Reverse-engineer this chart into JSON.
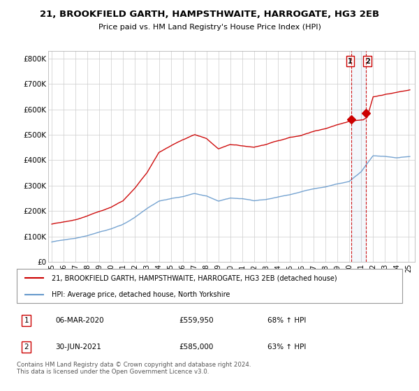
{
  "title_line1": "21, BROOKFIELD GARTH, HAMPSTHWAITE, HARROGATE, HG3 2EB",
  "title_line2": "Price paid vs. HM Land Registry's House Price Index (HPI)",
  "legend_label1": "21, BROOKFIELD GARTH, HAMPSTHWAITE, HARROGATE, HG3 2EB (detached house)",
  "legend_label2": "HPI: Average price, detached house, North Yorkshire",
  "footer": "Contains HM Land Registry data © Crown copyright and database right 2024.\nThis data is licensed under the Open Government Licence v3.0.",
  "annotation1": [
    "1",
    "06-MAR-2020",
    "£559,950",
    "68% ↑ HPI"
  ],
  "annotation2": [
    "2",
    "30-JUN-2021",
    "£585,000",
    "63% ↑ HPI"
  ],
  "ylabel_ticks": [
    "£0",
    "£100K",
    "£200K",
    "£300K",
    "£400K",
    "£500K",
    "£600K",
    "£700K",
    "£800K"
  ],
  "ytick_vals": [
    0,
    100000,
    200000,
    300000,
    400000,
    500000,
    600000,
    700000,
    800000
  ],
  "ylim": [
    0,
    830000
  ],
  "color_hpi": "#6699cc",
  "color_price": "#cc0000",
  "vline_color": "#cc0000",
  "background_color": "#ffffff",
  "grid_color": "#cccccc",
  "trans1_price": 559950,
  "trans2_price": 585000,
  "trans1_year": 2020.17,
  "trans2_year": 2021.42
}
